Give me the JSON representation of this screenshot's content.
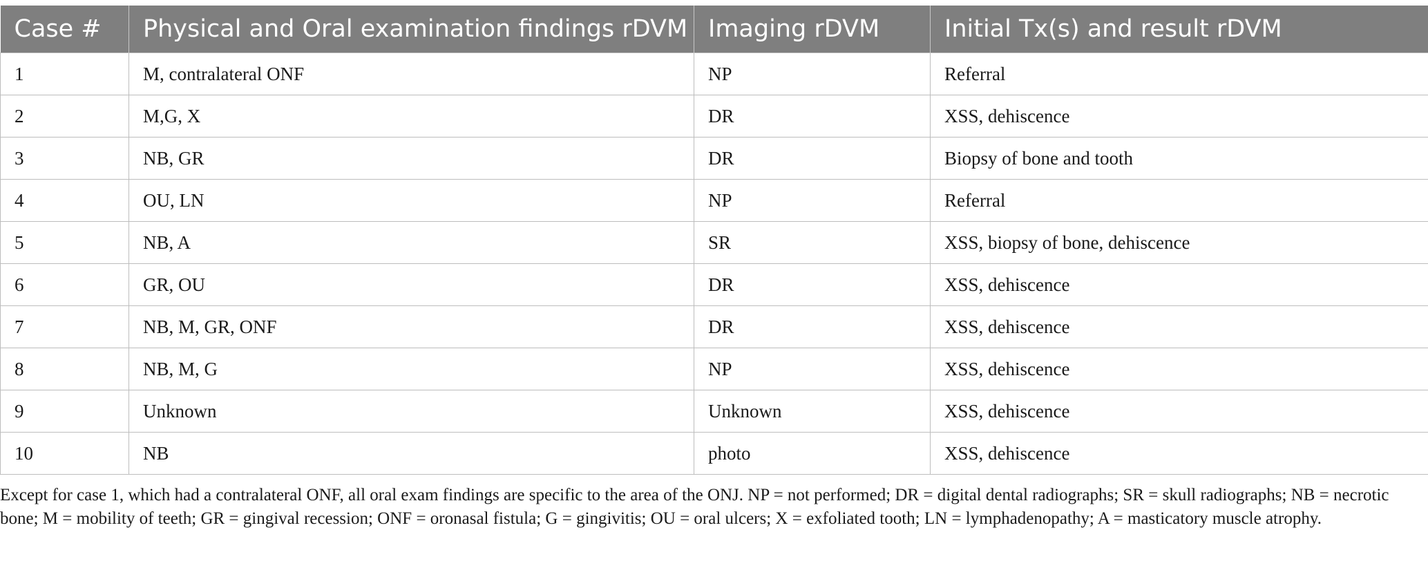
{
  "table": {
    "headers": [
      "Case #",
      "Physical and Oral examination findings rDVM",
      "Imaging rDVM",
      "Initial Tx(s) and result rDVM"
    ],
    "rows": [
      [
        "1",
        "M, contralateral ONF",
        "NP",
        "Referral"
      ],
      [
        "2",
        "M,G, X",
        "DR",
        "XSS, dehiscence"
      ],
      [
        "3",
        "NB, GR",
        "DR",
        "Biopsy of bone and tooth"
      ],
      [
        "4",
        "OU, LN",
        "NP",
        "Referral"
      ],
      [
        "5",
        "NB, A",
        "SR",
        "XSS, biopsy of bone, dehiscence"
      ],
      [
        "6",
        "GR, OU",
        "DR",
        "XSS, dehiscence"
      ],
      [
        "7",
        "NB, M, GR, ONF",
        "DR",
        "XSS, dehiscence"
      ],
      [
        "8",
        "NB, M, G",
        "NP",
        "XSS, dehiscence"
      ],
      [
        "9",
        "Unknown",
        "Unknown",
        "XSS, dehiscence"
      ],
      [
        "10",
        "NB",
        "photo",
        "XSS, dehiscence"
      ]
    ]
  },
  "footnote": "Except for case 1, which had a contralateral ONF, all oral exam findings are specific to the area of the ONJ. NP = not performed; DR = digital dental radiographs; SR = skull radiographs; NB = necrotic bone; M = mobility of teeth; GR = gingival recession; ONF = oronasal fistula; G = gingivitis; OU = oral ulcers; X = exfoliated tooth; LN = lymphadenopathy; A = masticatory muscle atrophy.",
  "colors": {
    "header_background": "#7f7f7f",
    "header_text": "#ffffff",
    "border": "#bdbdbd"
  }
}
